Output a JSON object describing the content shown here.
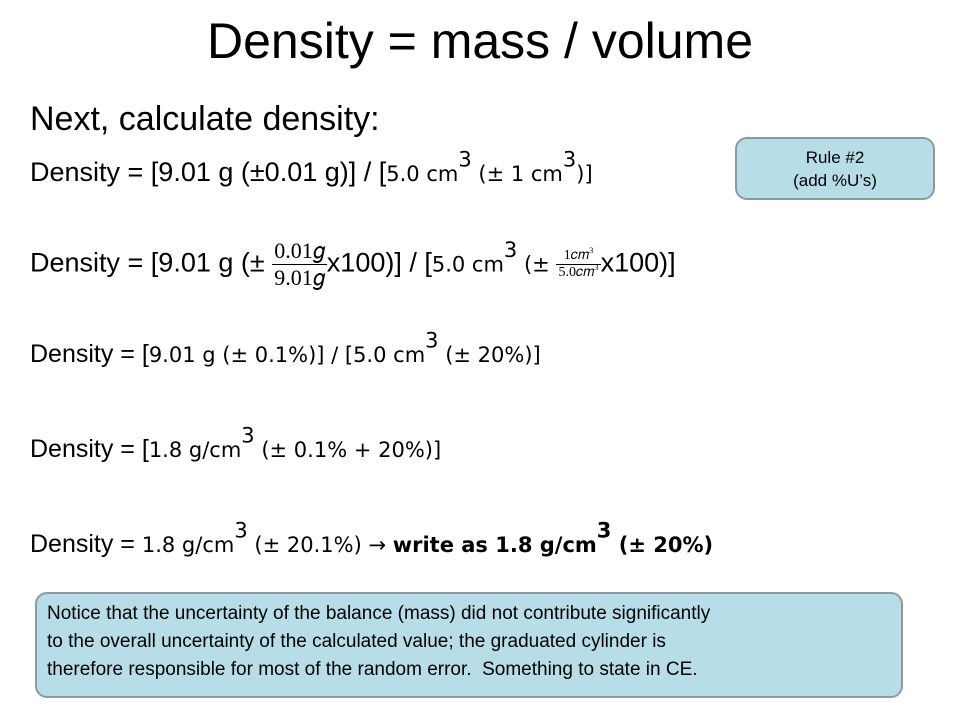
{
  "title": "Density = mass / volume",
  "subtitle": "Next, calculate density:",
  "rule_box": {
    "lines": [
      "Rule #2",
      "(add %U’s)"
    ]
  },
  "lines": [
    [
      "Density = [9.01 g (±0.01 g)] / [",
      "5.0 cm",
      "3",
      " (± 1 cm",
      "3",
      ")]"
    ],
    [
      "Density = [9.01 g (± ",
      "0.01𝑔",
      "9.01𝑔",
      "x100)] / [",
      "5.0 cm",
      "3",
      " (± ",
      "1𝑐𝑚",
      "3",
      "5.0𝑐𝑚",
      "3",
      "x100)]"
    ],
    [
      "Density = [",
      "9.01 g (± 0.1%)] / [5.0 cm",
      "3",
      " (± 20%)]"
    ],
    [
      "Density = [",
      "1.8 g/cm",
      "3",
      " (± 0.1% + 20%)]"
    ],
    [
      "Density = ",
      "1.8 g/cm",
      "3",
      " (± 20.1%) → ",
      "write as 1.8 g/cm",
      "3",
      " (± 20%)"
    ]
  ],
  "note": {
    "lines": [
      "Notice that the uncertainty of the balance (mass) did not contribute significantly",
      "to the overall uncertainty of the calculated value; the graduated cylinder is",
      "therefore responsible for most of the random error.  Something to state in CE."
    ]
  }
}
